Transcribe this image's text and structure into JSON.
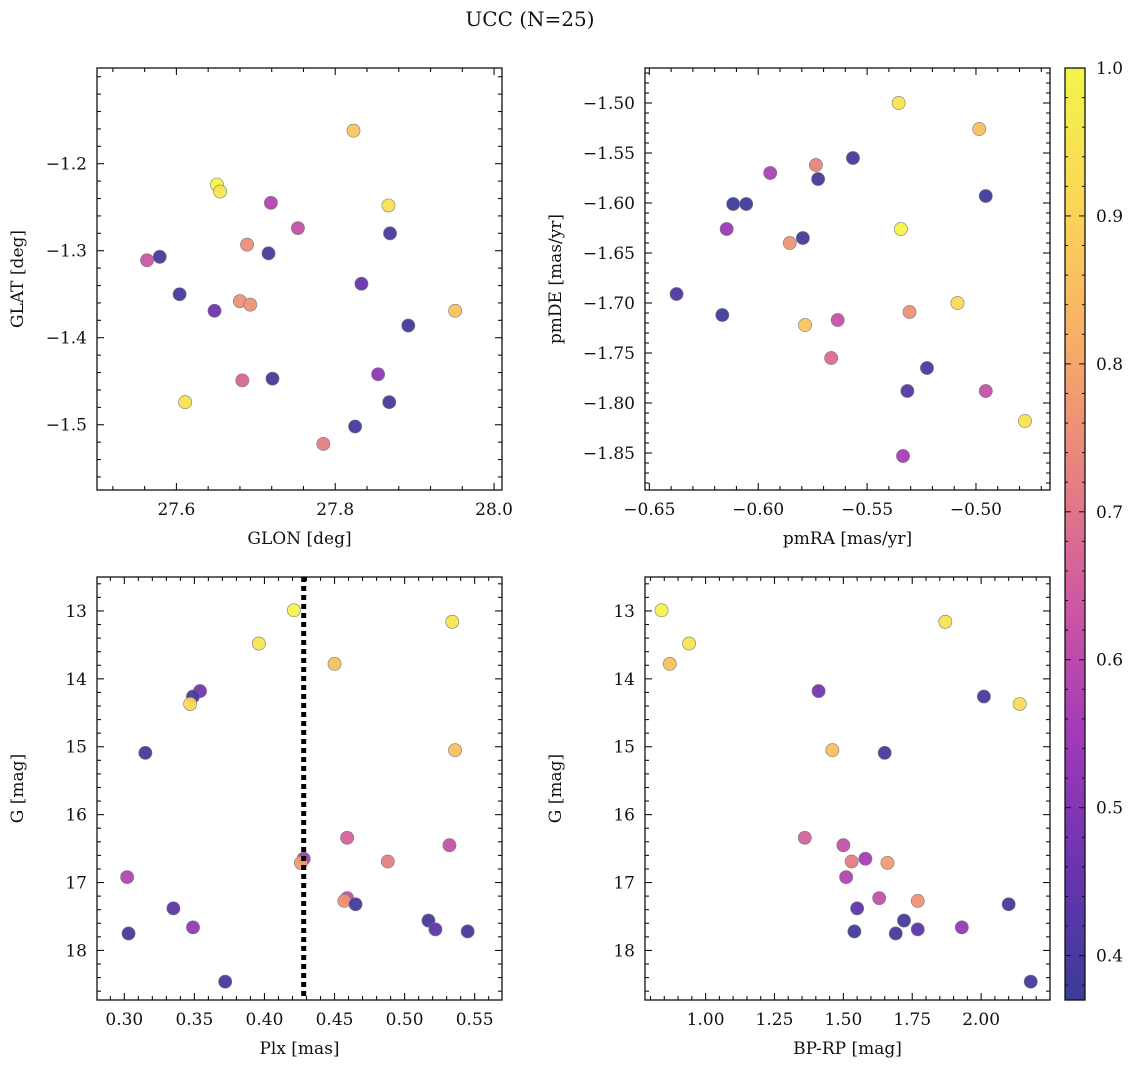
{
  "figure_title": "UCC (N=25)",
  "colorbar": {
    "range": [
      0.37,
      1.0
    ],
    "ticks": [
      0.4,
      0.5,
      0.6,
      0.7,
      0.8,
      0.9,
      1.0
    ],
    "tick_labels": [
      "0.4",
      "0.5",
      "0.6",
      "0.7",
      "0.8",
      "0.9",
      "1.0"
    ],
    "colormap": "plasma",
    "colormap_stops": [
      "#3a3c98",
      "#6a34b0",
      "#a23ab8",
      "#cf58a2",
      "#e8837f",
      "#f8b066",
      "#fbd756",
      "#f2f54a"
    ]
  },
  "chart_data": [
    {
      "type": "scatter",
      "title": "",
      "xlabel": "GLON [deg]",
      "ylabel": "GLAT [deg]",
      "xlim": [
        27.5,
        28.01
      ],
      "ylim": [
        -1.575,
        -1.09
      ],
      "y_inverted": false,
      "xticks": [
        27.6,
        27.8,
        28.0
      ],
      "xtick_labels": [
        "27.6",
        "27.8",
        "28.0"
      ],
      "yticks": [
        -1.2,
        -1.3,
        -1.4,
        -1.5
      ],
      "ytick_labels": [
        "−1.2",
        "−1.3",
        "−1.4",
        "−1.5"
      ],
      "points": [
        {
          "x": 27.823,
          "y": -1.162,
          "c": 0.87
        },
        {
          "x": 27.651,
          "y": -1.224,
          "c": 1.0
        },
        {
          "x": 27.655,
          "y": -1.232,
          "c": 0.95
        },
        {
          "x": 27.867,
          "y": -1.248,
          "c": 0.94
        },
        {
          "x": 27.719,
          "y": -1.245,
          "c": 0.58
        },
        {
          "x": 27.753,
          "y": -1.274,
          "c": 0.62
        },
        {
          "x": 27.869,
          "y": -1.28,
          "c": 0.4
        },
        {
          "x": 27.689,
          "y": -1.293,
          "c": 0.75
        },
        {
          "x": 27.716,
          "y": -1.303,
          "c": 0.4
        },
        {
          "x": 27.579,
          "y": -1.307,
          "c": 0.39
        },
        {
          "x": 27.563,
          "y": -1.311,
          "c": 0.63
        },
        {
          "x": 27.833,
          "y": -1.338,
          "c": 0.45
        },
        {
          "x": 27.604,
          "y": -1.35,
          "c": 0.39
        },
        {
          "x": 27.68,
          "y": -1.358,
          "c": 0.76
        },
        {
          "x": 27.693,
          "y": -1.362,
          "c": 0.76
        },
        {
          "x": 27.648,
          "y": -1.369,
          "c": 0.47
        },
        {
          "x": 27.951,
          "y": -1.369,
          "c": 0.86
        },
        {
          "x": 27.892,
          "y": -1.386,
          "c": 0.38
        },
        {
          "x": 27.854,
          "y": -1.442,
          "c": 0.52
        },
        {
          "x": 27.721,
          "y": -1.447,
          "c": 0.39
        },
        {
          "x": 27.683,
          "y": -1.449,
          "c": 0.67
        },
        {
          "x": 27.611,
          "y": -1.474,
          "c": 0.94
        },
        {
          "x": 27.868,
          "y": -1.474,
          "c": 0.39
        },
        {
          "x": 27.825,
          "y": -1.502,
          "c": 0.39
        },
        {
          "x": 27.785,
          "y": -1.522,
          "c": 0.72
        }
      ]
    },
    {
      "type": "scatter",
      "title": "",
      "xlabel": "pmRA [mas/yr]",
      "ylabel": "pmDE [mas/yr]",
      "xlim": [
        -0.652,
        -0.466
      ],
      "ylim": [
        -1.887,
        -1.465
      ],
      "y_inverted": false,
      "xticks": [
        -0.65,
        -0.6,
        -0.55,
        -0.5
      ],
      "xtick_labels": [
        "−0.65",
        "−0.60",
        "−0.55",
        "−0.50"
      ],
      "yticks": [
        -1.5,
        -1.55,
        -1.6,
        -1.65,
        -1.7,
        -1.75,
        -1.8,
        -1.85
      ],
      "ytick_labels": [
        "−1.50",
        "−1.55",
        "−1.60",
        "−1.65",
        "−1.70",
        "−1.75",
        "−1.80",
        "−1.85"
      ],
      "points": [
        {
          "x": -0.5355,
          "y": -1.5,
          "c": 0.95
        },
        {
          "x": -0.4985,
          "y": -1.526,
          "c": 0.86
        },
        {
          "x": -0.5565,
          "y": -1.555,
          "c": 0.39
        },
        {
          "x": -0.5735,
          "y": -1.562,
          "c": 0.73
        },
        {
          "x": -0.5945,
          "y": -1.57,
          "c": 0.57
        },
        {
          "x": -0.5725,
          "y": -1.576,
          "c": 0.39
        },
        {
          "x": -0.4955,
          "y": -1.593,
          "c": 0.38
        },
        {
          "x": -0.6115,
          "y": -1.601,
          "c": 0.38
        },
        {
          "x": -0.6055,
          "y": -1.601,
          "c": 0.38
        },
        {
          "x": -0.6145,
          "y": -1.626,
          "c": 0.54
        },
        {
          "x": -0.5345,
          "y": -1.626,
          "c": 1.0
        },
        {
          "x": -0.5795,
          "y": -1.635,
          "c": 0.39
        },
        {
          "x": -0.5855,
          "y": -1.64,
          "c": 0.76
        },
        {
          "x": -0.6375,
          "y": -1.691,
          "c": 0.41
        },
        {
          "x": -0.5085,
          "y": -1.7,
          "c": 0.92
        },
        {
          "x": -0.5305,
          "y": -1.709,
          "c": 0.76
        },
        {
          "x": -0.6165,
          "y": -1.712,
          "c": 0.38
        },
        {
          "x": -0.5635,
          "y": -1.717,
          "c": 0.62
        },
        {
          "x": -0.5785,
          "y": -1.722,
          "c": 0.87
        },
        {
          "x": -0.5665,
          "y": -1.755,
          "c": 0.68
        },
        {
          "x": -0.5225,
          "y": -1.765,
          "c": 0.41
        },
        {
          "x": -0.5315,
          "y": -1.788,
          "c": 0.42
        },
        {
          "x": -0.4955,
          "y": -1.788,
          "c": 0.62
        },
        {
          "x": -0.4775,
          "y": -1.818,
          "c": 0.95
        },
        {
          "x": -0.5335,
          "y": -1.853,
          "c": 0.56
        }
      ]
    },
    {
      "type": "scatter",
      "title": "",
      "xlabel": "Plx [mas]",
      "ylabel": "G [mag]",
      "xlim": [
        0.2805,
        0.5695
      ],
      "ylim": [
        12.5,
        18.73
      ],
      "y_inverted": true,
      "xticks": [
        0.3,
        0.35,
        0.4,
        0.45,
        0.5,
        0.55
      ],
      "xtick_labels": [
        "0.30",
        "0.35",
        "0.40",
        "0.45",
        "0.50",
        "0.55"
      ],
      "yticks": [
        13,
        14,
        15,
        16,
        17,
        18
      ],
      "ytick_labels": [
        "13",
        "14",
        "15",
        "16",
        "17",
        "18"
      ],
      "vline": {
        "x": 0.428,
        "style": "dotted"
      },
      "points": [
        {
          "x": 0.421,
          "y": 12.99,
          "c": 1.0
        },
        {
          "x": 0.534,
          "y": 13.16,
          "c": 0.95
        },
        {
          "x": 0.396,
          "y": 13.48,
          "c": 0.95
        },
        {
          "x": 0.45,
          "y": 13.78,
          "c": 0.86
        },
        {
          "x": 0.354,
          "y": 14.18,
          "c": 0.48
        },
        {
          "x": 0.349,
          "y": 14.26,
          "c": 0.4
        },
        {
          "x": 0.347,
          "y": 14.37,
          "c": 0.92
        },
        {
          "x": 0.315,
          "y": 15.09,
          "c": 0.39
        },
        {
          "x": 0.536,
          "y": 15.05,
          "c": 0.86
        },
        {
          "x": 0.459,
          "y": 16.34,
          "c": 0.66
        },
        {
          "x": 0.532,
          "y": 16.45,
          "c": 0.62
        },
        {
          "x": 0.428,
          "y": 16.65,
          "c": 0.56
        },
        {
          "x": 0.426,
          "y": 16.71,
          "c": 0.78
        },
        {
          "x": 0.488,
          "y": 16.69,
          "c": 0.72
        },
        {
          "x": 0.302,
          "y": 16.92,
          "c": 0.58
        },
        {
          "x": 0.459,
          "y": 17.23,
          "c": 0.62
        },
        {
          "x": 0.457,
          "y": 17.27,
          "c": 0.76
        },
        {
          "x": 0.465,
          "y": 17.32,
          "c": 0.39
        },
        {
          "x": 0.335,
          "y": 17.38,
          "c": 0.44
        },
        {
          "x": 0.517,
          "y": 17.56,
          "c": 0.39
        },
        {
          "x": 0.349,
          "y": 17.66,
          "c": 0.53
        },
        {
          "x": 0.522,
          "y": 17.69,
          "c": 0.44
        },
        {
          "x": 0.545,
          "y": 17.72,
          "c": 0.39
        },
        {
          "x": 0.303,
          "y": 17.75,
          "c": 0.39
        },
        {
          "x": 0.372,
          "y": 18.46,
          "c": 0.39
        }
      ]
    },
    {
      "type": "scatter",
      "title": "",
      "xlabel": "BP-RP [mag]",
      "ylabel": "G [mag]",
      "xlim": [
        0.78,
        2.25
      ],
      "ylim": [
        12.5,
        18.73
      ],
      "y_inverted": true,
      "xticks": [
        1.0,
        1.25,
        1.5,
        1.75,
        2.0
      ],
      "xtick_labels": [
        "1.00",
        "1.25",
        "1.50",
        "1.75",
        "2.00"
      ],
      "yticks": [
        13,
        14,
        15,
        16,
        17,
        18
      ],
      "ytick_labels": [
        "13",
        "14",
        "15",
        "16",
        "17",
        "18"
      ],
      "points": [
        {
          "x": 0.84,
          "y": 12.99,
          "c": 1.0
        },
        {
          "x": 1.87,
          "y": 13.16,
          "c": 0.95
        },
        {
          "x": 0.94,
          "y": 13.48,
          "c": 0.95
        },
        {
          "x": 0.87,
          "y": 13.78,
          "c": 0.86
        },
        {
          "x": 1.41,
          "y": 14.18,
          "c": 0.48
        },
        {
          "x": 2.01,
          "y": 14.26,
          "c": 0.4
        },
        {
          "x": 2.14,
          "y": 14.37,
          "c": 0.92
        },
        {
          "x": 1.46,
          "y": 15.05,
          "c": 0.86
        },
        {
          "x": 1.65,
          "y": 15.09,
          "c": 0.39
        },
        {
          "x": 1.36,
          "y": 16.34,
          "c": 0.66
        },
        {
          "x": 1.5,
          "y": 16.45,
          "c": 0.62
        },
        {
          "x": 1.58,
          "y": 16.65,
          "c": 0.56
        },
        {
          "x": 1.53,
          "y": 16.69,
          "c": 0.72
        },
        {
          "x": 1.66,
          "y": 16.71,
          "c": 0.78
        },
        {
          "x": 1.51,
          "y": 16.92,
          "c": 0.58
        },
        {
          "x": 1.63,
          "y": 17.23,
          "c": 0.62
        },
        {
          "x": 1.77,
          "y": 17.27,
          "c": 0.76
        },
        {
          "x": 2.1,
          "y": 17.32,
          "c": 0.39
        },
        {
          "x": 1.55,
          "y": 17.38,
          "c": 0.44
        },
        {
          "x": 1.72,
          "y": 17.56,
          "c": 0.39
        },
        {
          "x": 1.93,
          "y": 17.66,
          "c": 0.53
        },
        {
          "x": 1.77,
          "y": 17.69,
          "c": 0.44
        },
        {
          "x": 1.54,
          "y": 17.72,
          "c": 0.39
        },
        {
          "x": 1.69,
          "y": 17.75,
          "c": 0.39
        },
        {
          "x": 2.18,
          "y": 18.46,
          "c": 0.39
        }
      ]
    }
  ]
}
